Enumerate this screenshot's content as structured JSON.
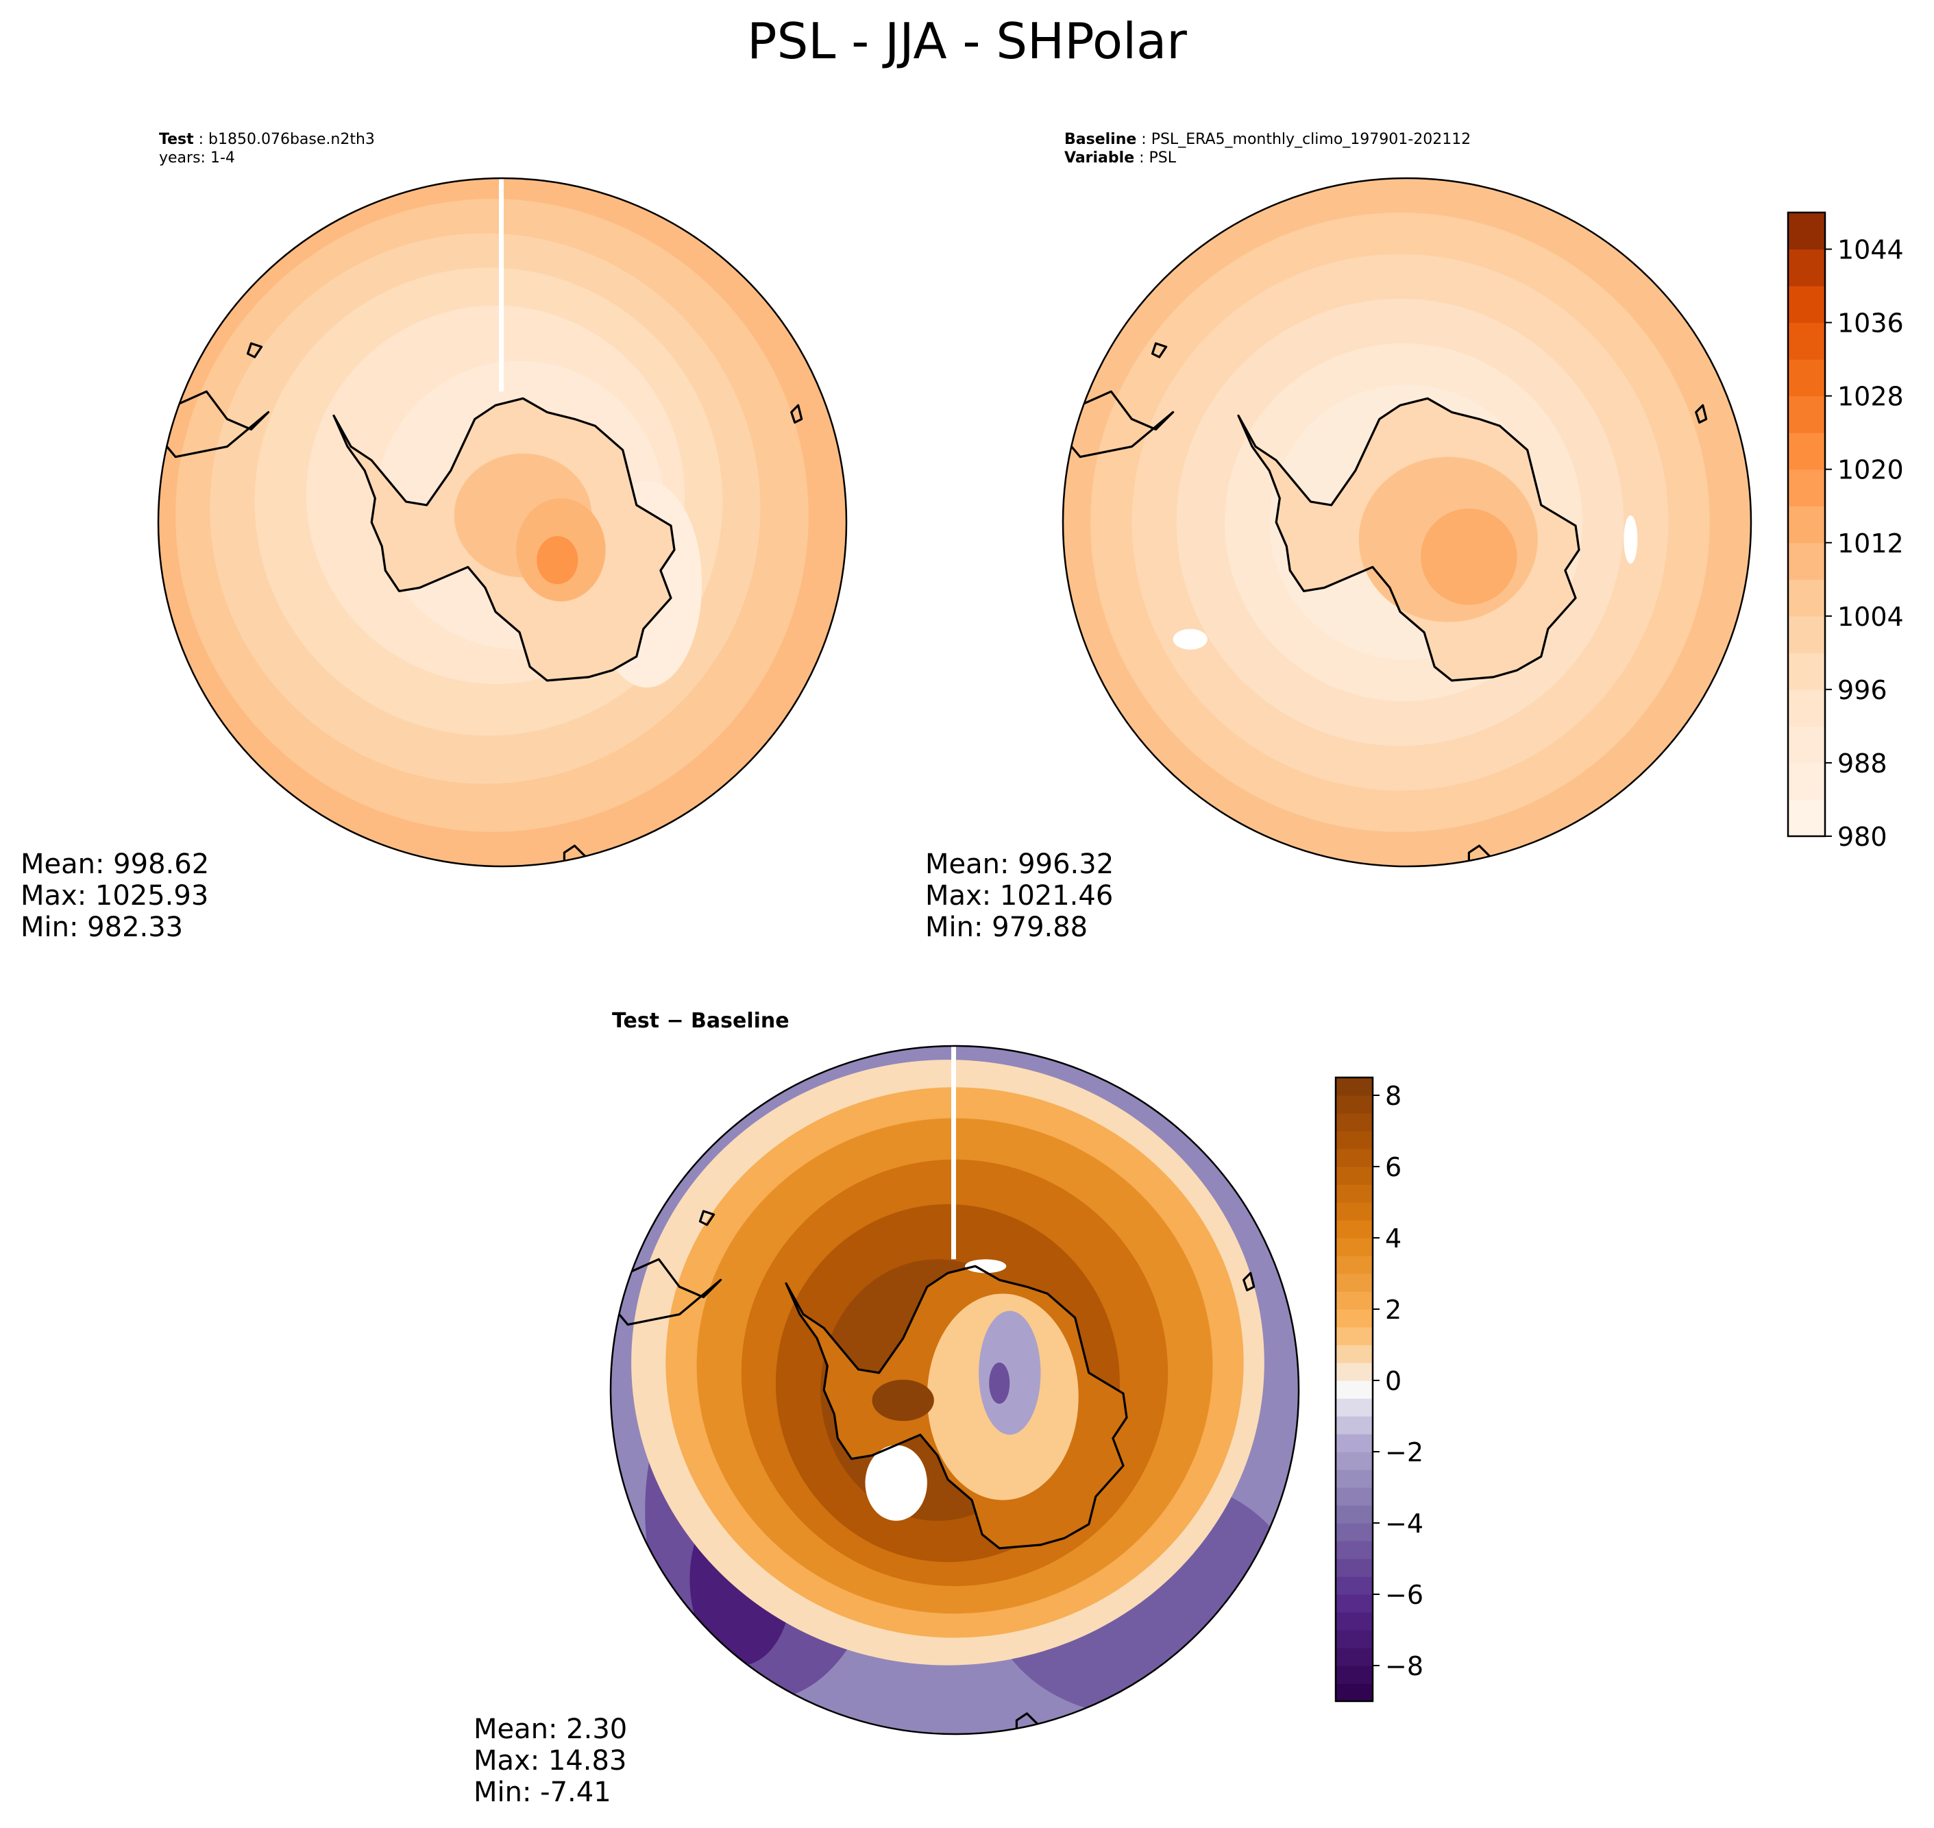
{
  "suptitle": "PSL - JJA - SHPolar",
  "panels": {
    "test": {
      "meta_label": "Test",
      "meta_value": "b1850.076base.n2th3",
      "years": "years: 1-4",
      "stats": {
        "mean": "Mean: 998.62",
        "max": "Max: 1025.93",
        "min": "Min: 982.33"
      }
    },
    "baseline": {
      "meta_label": "Baseline",
      "meta_value": "PSL_ERA5_monthly_climo_197901-202112",
      "var_label": "Variable",
      "var_value": "PSL",
      "stats": {
        "mean": "Mean: 996.32",
        "max": "Max: 1021.46",
        "min": "Min: 979.88"
      }
    },
    "diff": {
      "title": "Test − Baseline",
      "stats": {
        "mean": "Mean:  2.30",
        "max": "Max: 14.83",
        "min": "Min: -7.41"
      }
    }
  },
  "colors": {
    "oranges_light": "#fff5eb",
    "oranges_mid": "#fd8d3c",
    "oranges_dark": "#7f2704",
    "puor_orange": "#7f3b08",
    "puor_neutral": "#f7f7f7",
    "puor_purple": "#2d004b"
  },
  "chart_data": [
    {
      "type": "heatmap",
      "name": "Test",
      "projection": "south polar stereographic",
      "colormap": "Oranges",
      "vmin": 980,
      "vmax": 1048,
      "level_step": 4,
      "colorbar_ticks": [
        "980",
        "988",
        "996",
        "1004",
        "1012",
        "1020",
        "1028",
        "1036",
        "1044"
      ],
      "mean": 998.62,
      "max": 1025.93,
      "min": 982.33
    },
    {
      "type": "heatmap",
      "name": "Baseline",
      "projection": "south polar stereographic",
      "colormap": "Oranges",
      "vmin": 980,
      "vmax": 1048,
      "level_step": 4,
      "colorbar_ticks": [
        "980",
        "988",
        "996",
        "1004",
        "1012",
        "1020",
        "1028",
        "1036",
        "1044"
      ],
      "mean": 996.32,
      "max": 1021.46,
      "min": 979.88
    },
    {
      "type": "heatmap",
      "name": "Test − Baseline",
      "projection": "south polar stereographic",
      "colormap": "PuOr (orange positive)",
      "vmin": -9,
      "vmax": 8.5,
      "level_step": 0.5,
      "colorbar_ticks": [
        "−8",
        "−6",
        "−4",
        "−2",
        "0",
        "2",
        "4",
        "6",
        "8"
      ],
      "mean": 2.3,
      "max": 14.83,
      "min": -7.41
    }
  ]
}
